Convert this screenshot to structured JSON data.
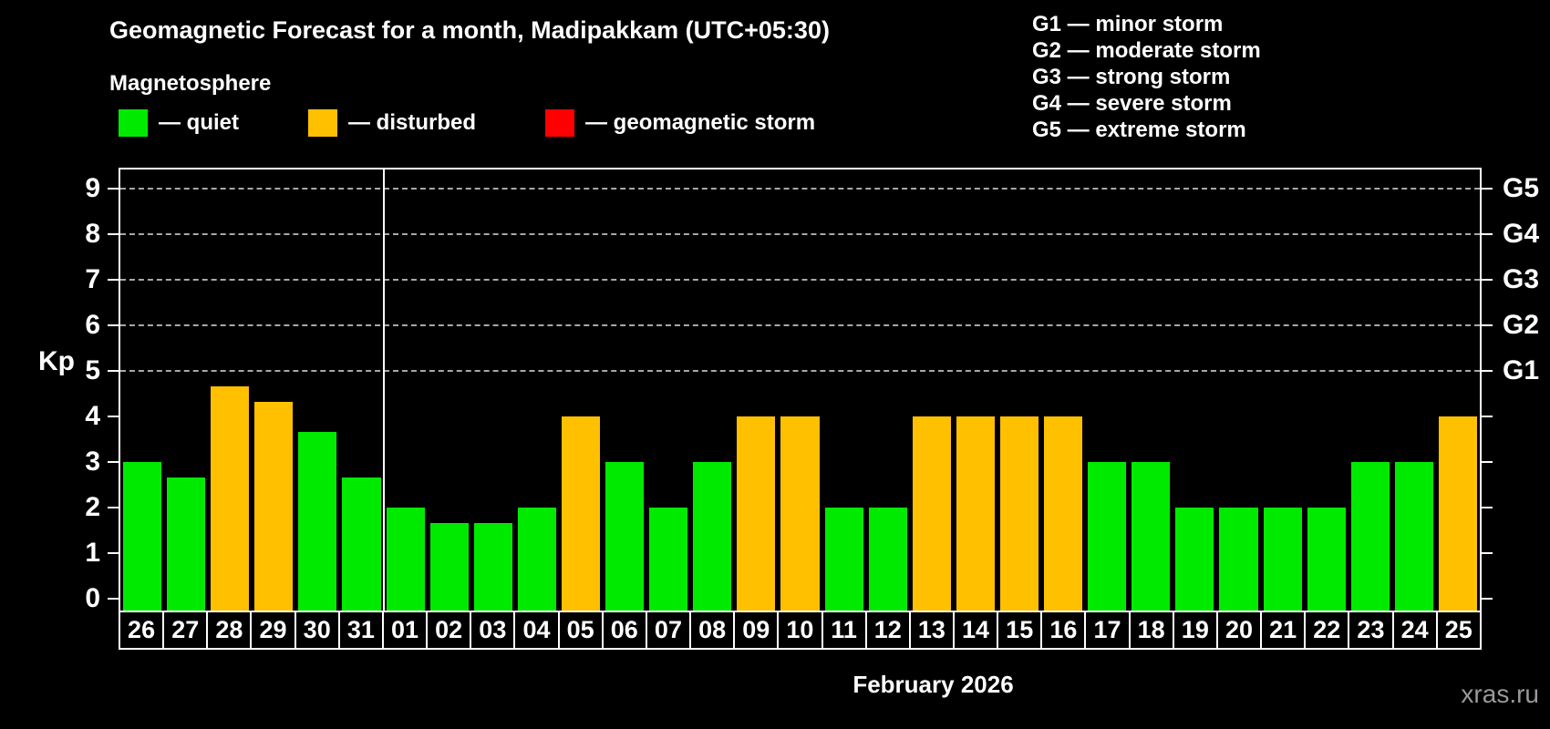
{
  "header": {
    "title": "Geomagnetic Forecast for a month, Madipakkam (UTC+05:30)",
    "subtitle": "Magnetosphere"
  },
  "legend": {
    "items": [
      {
        "key": "quiet",
        "label": "— quiet",
        "color": "#00ea00"
      },
      {
        "key": "disturbed",
        "label": "— disturbed",
        "color": "#ffc000"
      },
      {
        "key": "storm",
        "label": "— geomagnetic storm",
        "color": "#ff0000"
      }
    ]
  },
  "g_scale_legend": {
    "lines": [
      "G1 — minor storm",
      "G2 — moderate storm",
      "G3 — strong storm",
      "G4 — severe storm",
      "G5 — extreme storm"
    ]
  },
  "axes": {
    "y_title": "Kp",
    "y_ticks": [
      0,
      1,
      2,
      3,
      4,
      5,
      6,
      7,
      8,
      9
    ]
  },
  "footer": {
    "month_label": "February 2026",
    "watermark": "xras.ru"
  },
  "colors": {
    "background": "#000000",
    "quiet": "#00ea00",
    "disturbed": "#ffc000",
    "storm": "#ff0000",
    "axis": "#ffffff",
    "grid": "#a8a8a8",
    "watermark": "#999999"
  },
  "chart_data": {
    "type": "bar",
    "title": "Geomagnetic Forecast for a month, Madipakkam (UTC+05:30)",
    "ylabel": "Kp",
    "ylim": [
      0,
      9
    ],
    "grid": "horizontal dashed lines at Kp 5-9 only",
    "legend_position": "top-left",
    "categories": [
      "26",
      "27",
      "28",
      "29",
      "30",
      "31",
      "01",
      "02",
      "03",
      "04",
      "05",
      "06",
      "07",
      "08",
      "09",
      "10",
      "11",
      "12",
      "13",
      "14",
      "15",
      "16",
      "17",
      "18",
      "19",
      "20",
      "21",
      "22",
      "23",
      "24",
      "25"
    ],
    "values": [
      3,
      2.67,
      4.67,
      4.33,
      3.67,
      2.67,
      2,
      1.67,
      1.67,
      2,
      4,
      3,
      2,
      3,
      4,
      4,
      2,
      2,
      4,
      4,
      4,
      4,
      3,
      3,
      2,
      2,
      2,
      2,
      3,
      3,
      4
    ],
    "statuses": [
      "quiet",
      "quiet",
      "disturbed",
      "disturbed",
      "quiet",
      "quiet",
      "quiet",
      "quiet",
      "quiet",
      "quiet",
      "disturbed",
      "quiet",
      "quiet",
      "quiet",
      "disturbed",
      "disturbed",
      "quiet",
      "quiet",
      "disturbed",
      "disturbed",
      "disturbed",
      "disturbed",
      "quiet",
      "quiet",
      "quiet",
      "quiet",
      "quiet",
      "quiet",
      "quiet",
      "quiet",
      "disturbed"
    ],
    "month_separator_after_index": 5,
    "x_month_label": "February 2026",
    "g_levels": [
      {
        "kp": 5,
        "label": "G1"
      },
      {
        "kp": 6,
        "label": "G2"
      },
      {
        "kp": 7,
        "label": "G3"
      },
      {
        "kp": 8,
        "label": "G4"
      },
      {
        "kp": 9,
        "label": "G5"
      }
    ],
    "y_ticks": [
      0,
      1,
      2,
      3,
      4,
      5,
      6,
      7,
      8,
      9
    ]
  }
}
